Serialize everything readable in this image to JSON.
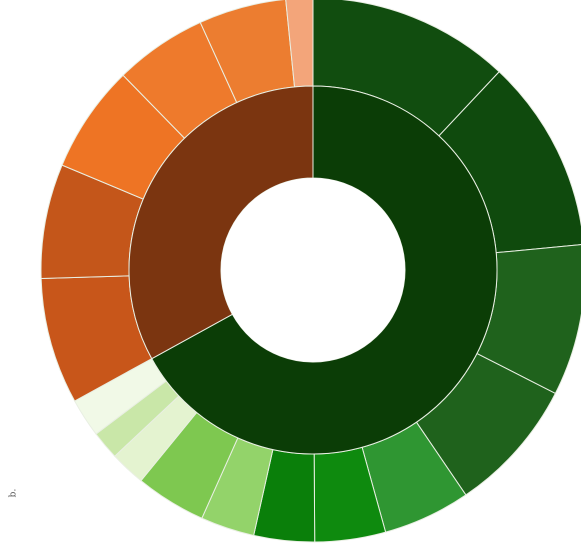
{
  "panel_label": "b.",
  "chart_data": {
    "type": "sunburst",
    "title": "",
    "center_hole": true,
    "rings": [
      {
        "level": "inner",
        "segments": [
          {
            "name": "",
            "value": 67,
            "color": "#0b3d06"
          },
          {
            "name": "",
            "value": 33,
            "color": "#7b3510"
          }
        ]
      },
      {
        "level": "outer",
        "segments": [
          {
            "name": "",
            "value": 12.0,
            "color": "#114d0f"
          },
          {
            "name": "",
            "value": 11.5,
            "color": "#0f4a0d"
          },
          {
            "name": "",
            "value": 9.0,
            "color": "#1f621c"
          },
          {
            "name": "",
            "value": 8.0,
            "color": "#1f621c"
          },
          {
            "name": "",
            "value": 5.2,
            "color": "#2f9632"
          },
          {
            "name": "",
            "value": 4.2,
            "color": "#0e8a0e"
          },
          {
            "name": "",
            "value": 3.6,
            "color": "#0a7f0a"
          },
          {
            "name": "",
            "value": 3.2,
            "color": "#93d36a"
          },
          {
            "name": "",
            "value": 4.2,
            "color": "#7ec850"
          },
          {
            "name": "",
            "value": 2.1,
            "color": "#e4f3d0"
          },
          {
            "name": "",
            "value": 1.7,
            "color": "#c9e7a8"
          },
          {
            "name": "",
            "value": 2.3,
            "color": "#f1f9e7"
          },
          {
            "name": "",
            "value": 7.5,
            "color": "#c8561a"
          },
          {
            "name": "",
            "value": 6.8,
            "color": "#c4561a"
          },
          {
            "name": "",
            "value": 6.4,
            "color": "#ee7424"
          },
          {
            "name": "",
            "value": 5.5,
            "color": "#ee7a2c"
          },
          {
            "name": "",
            "value": 5.2,
            "color": "#ec7d30"
          },
          {
            "name": "",
            "value": 1.6,
            "color": "#f3a57a"
          }
        ]
      }
    ],
    "legend": "none",
    "start_angle_deg": 90
  }
}
